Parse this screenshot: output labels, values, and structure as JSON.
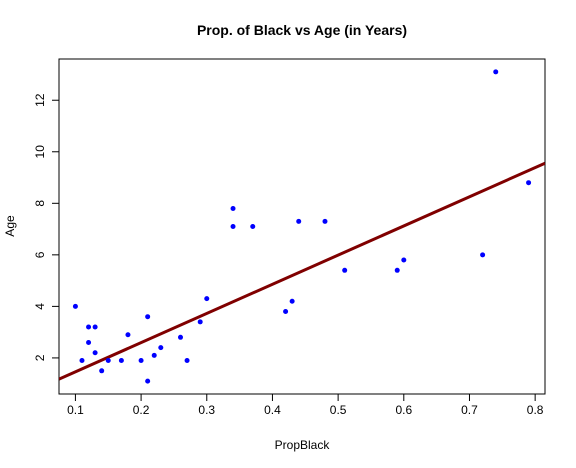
{
  "chart_data": {
    "type": "scatter",
    "title": "Prop. of Black vs Age (in Years)",
    "xlabel": "PropBlack",
    "ylabel": "Age",
    "xlim": [
      0.075,
      0.815
    ],
    "ylim": [
      0.6,
      13.6
    ],
    "x_ticks": [
      0.1,
      0.2,
      0.3,
      0.4,
      0.5,
      0.6,
      0.7,
      0.8
    ],
    "x_tick_labels": [
      "0.1",
      "0.2",
      "0.3",
      "0.4",
      "0.5",
      "0.6",
      "0.7",
      "0.8"
    ],
    "y_ticks": [
      2,
      4,
      6,
      8,
      10,
      12
    ],
    "y_tick_labels": [
      "2",
      "4",
      "6",
      "8",
      "10",
      "12"
    ],
    "grid": false,
    "legend": "none",
    "colors": {
      "points": "#0000ff",
      "fit_line": "#800000",
      "axes": "#000000"
    },
    "points": [
      {
        "x": 0.1,
        "y": 4.0
      },
      {
        "x": 0.11,
        "y": 1.9
      },
      {
        "x": 0.12,
        "y": 3.2
      },
      {
        "x": 0.12,
        "y": 2.6
      },
      {
        "x": 0.13,
        "y": 3.2
      },
      {
        "x": 0.13,
        "y": 2.2
      },
      {
        "x": 0.14,
        "y": 1.5
      },
      {
        "x": 0.15,
        "y": 1.9
      },
      {
        "x": 0.17,
        "y": 1.9
      },
      {
        "x": 0.18,
        "y": 2.9
      },
      {
        "x": 0.2,
        "y": 1.9
      },
      {
        "x": 0.21,
        "y": 3.6
      },
      {
        "x": 0.21,
        "y": 1.1
      },
      {
        "x": 0.22,
        "y": 2.1
      },
      {
        "x": 0.23,
        "y": 2.4
      },
      {
        "x": 0.26,
        "y": 2.8
      },
      {
        "x": 0.27,
        "y": 1.9
      },
      {
        "x": 0.29,
        "y": 3.4
      },
      {
        "x": 0.3,
        "y": 4.3
      },
      {
        "x": 0.34,
        "y": 7.8
      },
      {
        "x": 0.34,
        "y": 7.1
      },
      {
        "x": 0.37,
        "y": 7.1
      },
      {
        "x": 0.42,
        "y": 3.8
      },
      {
        "x": 0.43,
        "y": 4.2
      },
      {
        "x": 0.44,
        "y": 7.3
      },
      {
        "x": 0.48,
        "y": 7.3
      },
      {
        "x": 0.51,
        "y": 5.4
      },
      {
        "x": 0.59,
        "y": 5.4
      },
      {
        "x": 0.6,
        "y": 5.8
      },
      {
        "x": 0.72,
        "y": 6.0
      },
      {
        "x": 0.74,
        "y": 13.1
      },
      {
        "x": 0.79,
        "y": 8.8
      }
    ],
    "fit_line": {
      "intercept": 0.33,
      "slope": 11.32
    }
  }
}
